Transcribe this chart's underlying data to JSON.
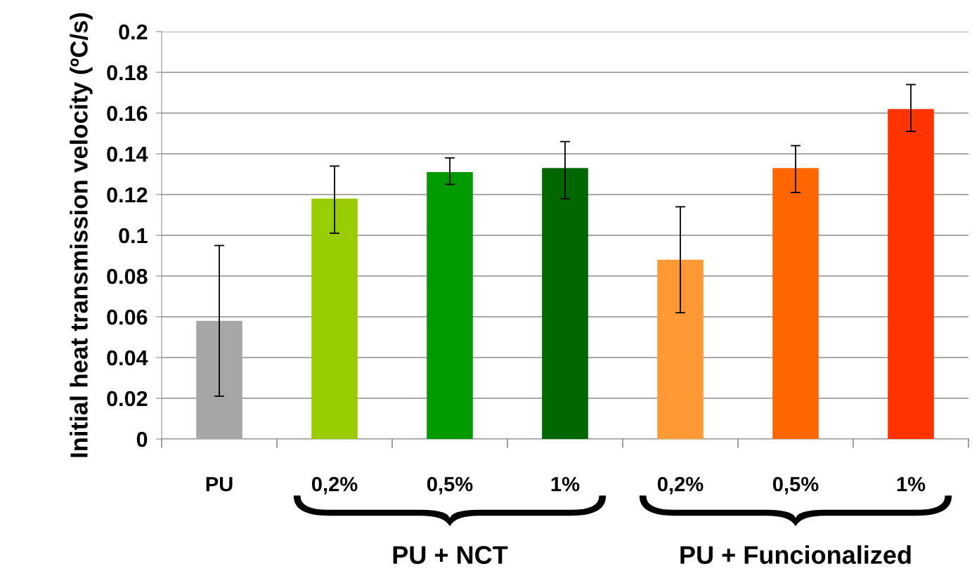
{
  "chart_data": {
    "type": "bar",
    "ylabel": "Initial heat transmission velocity (ºC/s)",
    "categories": [
      "PU",
      "0,2%",
      "0,5%",
      "1%",
      "0,2%",
      "0,5%",
      "1%"
    ],
    "values": [
      0.058,
      0.118,
      0.131,
      0.133,
      0.088,
      0.133,
      0.162
    ],
    "colors": [
      "#a6a6a6",
      "#99cc00",
      "#009900",
      "#006600",
      "#ff9933",
      "#ff6600",
      "#ff3300"
    ],
    "errors": [
      [
        0.021,
        0.095
      ],
      [
        0.101,
        0.134
      ],
      [
        0.125,
        0.138
      ],
      [
        0.118,
        0.146
      ],
      [
        0.062,
        0.114
      ],
      [
        0.121,
        0.144
      ],
      [
        0.151,
        0.174
      ]
    ],
    "ylim": [
      0,
      0.2
    ],
    "yticks": [
      0,
      0.02,
      0.04,
      0.06,
      0.08,
      0.1,
      0.12,
      0.14,
      0.16,
      0.18,
      0.2
    ],
    "grid": "y",
    "legend": false,
    "annotations": [
      "PU + NCT",
      "PU + Funcionalized"
    ]
  }
}
